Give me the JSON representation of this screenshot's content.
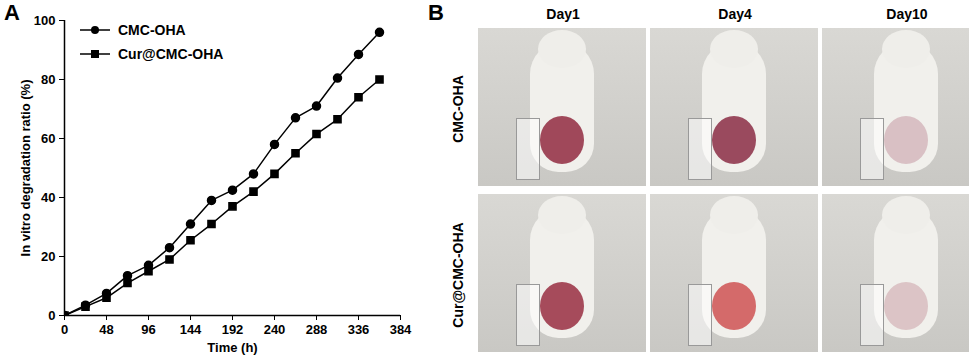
{
  "chart_data": {
    "type": "line",
    "panel_label": "A",
    "xlabel": "Time (h)",
    "ylabel": "In vitro degradation ratio (%)",
    "x": [
      0,
      24,
      48,
      72,
      96,
      120,
      144,
      168,
      192,
      216,
      240,
      264,
      288,
      312,
      336,
      360
    ],
    "series": [
      {
        "name": "CMC-OHA",
        "color": "#000000",
        "marker": "circle",
        "values": [
          0,
          3.5,
          7.5,
          13.5,
          17,
          23,
          31,
          39,
          42.5,
          48,
          58,
          67,
          71,
          80.5,
          88.5,
          96
        ]
      },
      {
        "name": "Cur@CMC-OHA",
        "color": "#000000",
        "marker": "square",
        "values": [
          0,
          3,
          6,
          11,
          15,
          19,
          25.5,
          31,
          37,
          42,
          48,
          55,
          61.5,
          66.5,
          74,
          80
        ]
      }
    ],
    "xlim": [
      0,
      384
    ],
    "xticks": [
      0,
      48,
      96,
      144,
      192,
      240,
      288,
      336,
      384
    ],
    "ylim": [
      0,
      100
    ],
    "yticks": [
      0,
      20,
      40,
      60,
      80,
      100
    ],
    "legend": "top-left"
  },
  "photo_panel": {
    "panel_label": "B",
    "columns": [
      "Day1",
      "Day4",
      "Day10"
    ],
    "rows": [
      "CMC-OHA",
      "Cur@CMC-OHA"
    ]
  }
}
